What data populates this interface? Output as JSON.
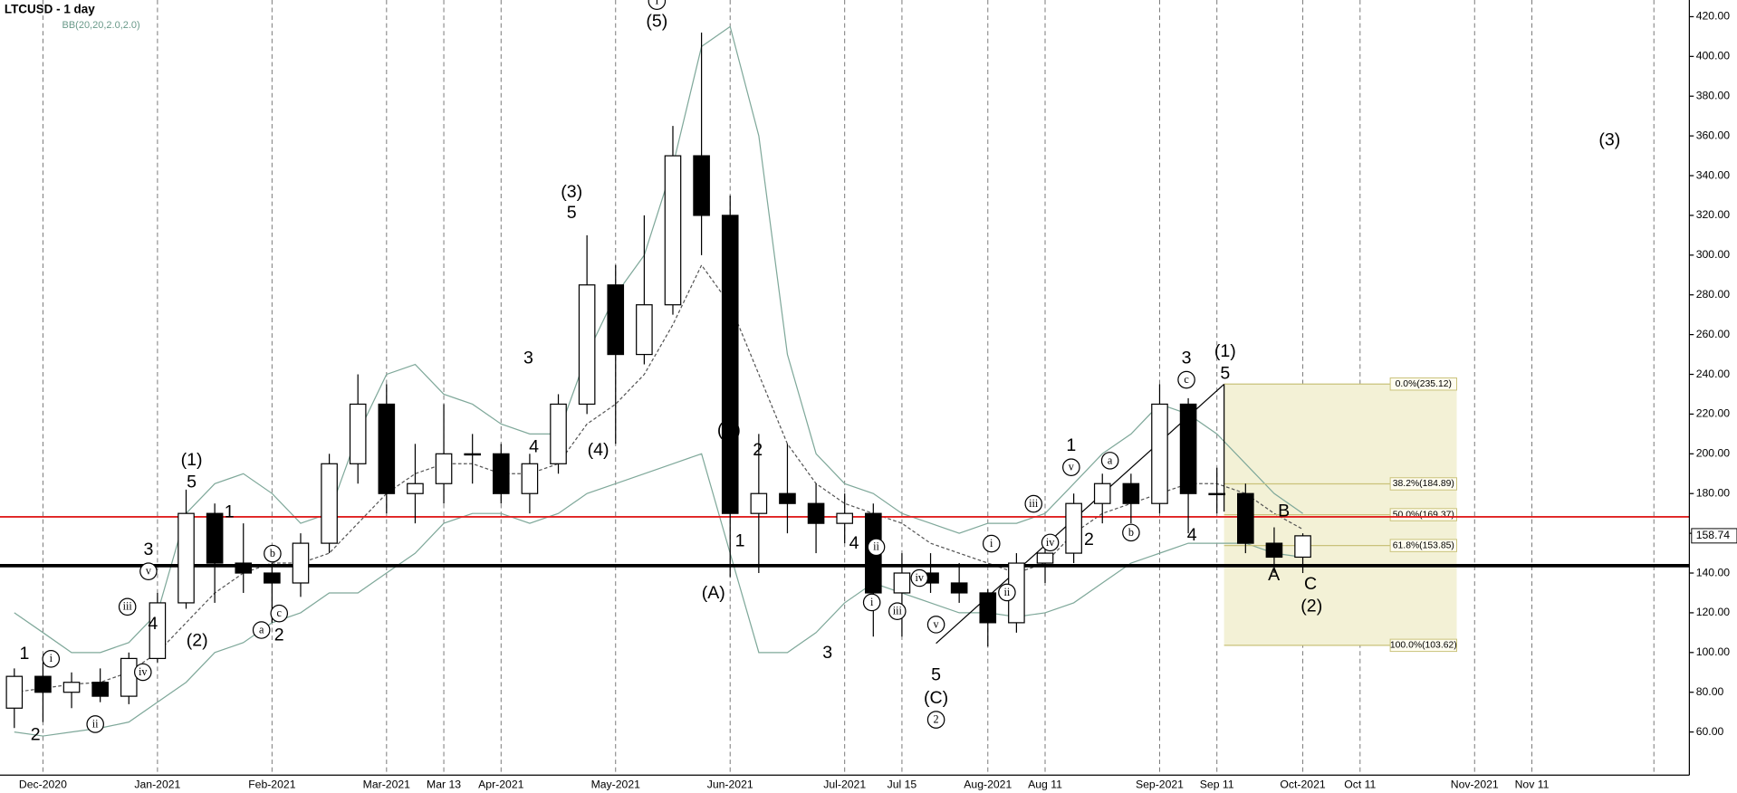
{
  "chart_data": {
    "type": "candlestick",
    "title": "LTCUSD - 1 day",
    "subtitle": "BB(20,20,2.0,2.0)",
    "categories": [
      null,
      "Dec-2020",
      null,
      null,
      null,
      "Jan-2021",
      null,
      null,
      null,
      "Feb-2021",
      null,
      null,
      null,
      "Mar-2021",
      null,
      "Mar 13",
      null,
      "Apr-2021",
      null,
      null,
      null,
      "May-2021",
      null,
      null,
      null,
      "Jun-2021",
      null,
      null,
      null,
      "Jul-2021",
      null,
      "Jul 15",
      null,
      null,
      "Aug-2021",
      null,
      "Aug 11",
      null,
      null,
      null,
      "Sep-2021",
      null,
      "Sep 11",
      null,
      null,
      "Oct-2021",
      null,
      "Oct 11",
      null,
      null,
      null,
      "Nov-2021",
      null,
      "Nov 11",
      null,
      null,
      null,
      null,
      null
    ],
    "open": [
      72,
      88,
      80,
      85,
      78,
      97,
      125,
      170,
      145,
      140,
      135,
      155,
      195,
      225,
      180,
      185,
      200,
      200,
      180,
      195,
      225,
      285,
      250,
      275,
      350,
      320,
      170,
      180,
      175,
      165,
      170,
      130,
      140,
      135,
      130,
      115,
      145,
      150,
      175,
      185,
      175,
      225,
      180,
      180,
      155,
      148,
      null,
      null,
      null,
      null,
      null,
      null,
      null,
      null,
      null,
      null,
      null,
      null,
      null
    ],
    "high": [
      92,
      95,
      90,
      92,
      100,
      130,
      182,
      175,
      165,
      145,
      160,
      200,
      240,
      235,
      205,
      225,
      210,
      205,
      200,
      230,
      310,
      295,
      320,
      365,
      412,
      330,
      210,
      205,
      185,
      180,
      175,
      150,
      150,
      145,
      132,
      150,
      155,
      180,
      190,
      190,
      235,
      228,
      193,
      185,
      163,
      160,
      null,
      null,
      null,
      null,
      null,
      null,
      null,
      null,
      null,
      null,
      null,
      null,
      null
    ],
    "low": [
      62,
      65,
      72,
      75,
      74,
      95,
      122,
      125,
      130,
      115,
      128,
      150,
      185,
      170,
      165,
      175,
      185,
      175,
      170,
      190,
      220,
      205,
      245,
      270,
      300,
      138,
      140,
      160,
      150,
      155,
      108,
      108,
      130,
      125,
      103,
      110,
      135,
      145,
      165,
      165,
      170,
      160,
      170,
      150,
      140,
      140,
      null,
      null,
      null,
      null,
      null,
      null,
      null,
      null,
      null,
      null,
      null,
      null,
      null
    ],
    "close": [
      88,
      80,
      85,
      78,
      97,
      125,
      170,
      145,
      140,
      135,
      155,
      195,
      225,
      180,
      185,
      200,
      200,
      180,
      195,
      225,
      285,
      250,
      275,
      350,
      320,
      170,
      180,
      175,
      165,
      170,
      130,
      140,
      135,
      130,
      115,
      145,
      150,
      175,
      185,
      175,
      225,
      180,
      180,
      155,
      148,
      158.74,
      null,
      null,
      null,
      null,
      null,
      null,
      null,
      null,
      null,
      null,
      null,
      null,
      null
    ],
    "bands": [
      {
        "color": "#7fa89a",
        "values": [
          120,
          110,
          100,
          100,
          105,
          120,
          170,
          185,
          190,
          180,
          165,
          170,
          210,
          240,
          245,
          230,
          225,
          215,
          210,
          210,
          250,
          280,
          300,
          345,
          405,
          415,
          360,
          250,
          200,
          185,
          180,
          170,
          165,
          160,
          165,
          165,
          170,
          185,
          200,
          210,
          225,
          220,
          210,
          195,
          180,
          170,
          null,
          null,
          null,
          null,
          null,
          null,
          null,
          null,
          null,
          null,
          null,
          null,
          null
        ]
      },
      {
        "color": "#555555",
        "values": [
          80,
          82,
          84,
          85,
          90,
          100,
          115,
          130,
          140,
          145,
          145,
          150,
          165,
          180,
          190,
          195,
          195,
          190,
          190,
          195,
          215,
          225,
          240,
          265,
          295,
          275,
          240,
          205,
          185,
          175,
          170,
          165,
          155,
          150,
          145,
          140,
          145,
          160,
          170,
          175,
          180,
          185,
          185,
          180,
          170,
          162,
          null,
          null,
          null,
          null,
          null,
          null,
          null,
          null,
          null,
          null,
          null,
          null,
          null
        ]
      },
      {
        "color": "#7fa89a",
        "values": [
          60,
          58,
          60,
          62,
          65,
          75,
          85,
          100,
          105,
          115,
          120,
          130,
          130,
          140,
          150,
          165,
          170,
          170,
          165,
          170,
          180,
          185,
          190,
          195,
          200,
          150,
          100,
          100,
          110,
          125,
          135,
          130,
          125,
          120,
          120,
          118,
          120,
          125,
          135,
          145,
          150,
          155,
          155,
          155,
          150,
          148,
          null,
          null,
          null,
          null,
          null,
          null,
          null,
          null,
          null,
          null,
          null,
          null,
          null
        ]
      }
    ],
    "levels": [
      {
        "value": 168.3,
        "color": "#e02020"
      },
      {
        "value": 143.7,
        "color": "#000000"
      }
    ],
    "fib": [
      {
        "value": 235.12,
        "label": "0.0%(235.12)"
      },
      {
        "value": 184.89,
        "label": "38.2%(184.89)"
      },
      {
        "value": 169.37,
        "label": "50.0%(169.37)"
      },
      {
        "value": 153.85,
        "label": "61.8%(153.85)"
      },
      {
        "value": 103.62,
        "label": "100.0%(103.62)"
      }
    ],
    "last_price": 158.74,
    "ylim": [
      38.3,
      428.4
    ],
    "yticks": [
      {
        "value": 60,
        "label": "60.00"
      },
      {
        "value": 80,
        "label": "80.00"
      },
      {
        "value": 100,
        "label": "100.00"
      },
      {
        "value": 120,
        "label": "120.00"
      },
      {
        "value": 140,
        "label": "140.00"
      },
      {
        "value": 160,
        "label": "160.00"
      },
      {
        "value": 180,
        "label": "180.00"
      },
      {
        "value": 200,
        "label": "200.00"
      },
      {
        "value": 220,
        "label": "220.00"
      },
      {
        "value": 240,
        "label": "240.00"
      },
      {
        "value": 260,
        "label": "260.00"
      },
      {
        "value": 280,
        "label": "280.00"
      },
      {
        "value": 300,
        "label": "300.00"
      },
      {
        "value": 320,
        "label": "320.00"
      },
      {
        "value": 340,
        "label": "340.00"
      },
      {
        "value": 360,
        "label": "360.00"
      },
      {
        "value": 380,
        "label": "380.00"
      },
      {
        "value": 400,
        "label": "400.00"
      },
      {
        "value": 420,
        "label": "420.00"
      }
    ],
    "annotations": [
      "1",
      "2",
      "i",
      "ii",
      "iii",
      "4",
      "iv",
      "v",
      "3",
      "(1)",
      "5",
      "(2)",
      "1",
      "b",
      "c",
      "a",
      "2",
      "3",
      "4",
      "(3)",
      "5",
      "(4)",
      "(5)",
      "I",
      "(B)",
      "2",
      "1",
      "(A)",
      "4",
      "ii",
      "iv",
      "i",
      "iii",
      "3",
      "v",
      "5",
      "(C)",
      "2",
      "i",
      "ii",
      "iii",
      "iv",
      "v",
      "1",
      "a",
      "2",
      "b",
      "3",
      "c",
      "(1)",
      "5",
      "4",
      "B",
      "A",
      "C",
      "(2)",
      "(3)"
    ]
  }
}
